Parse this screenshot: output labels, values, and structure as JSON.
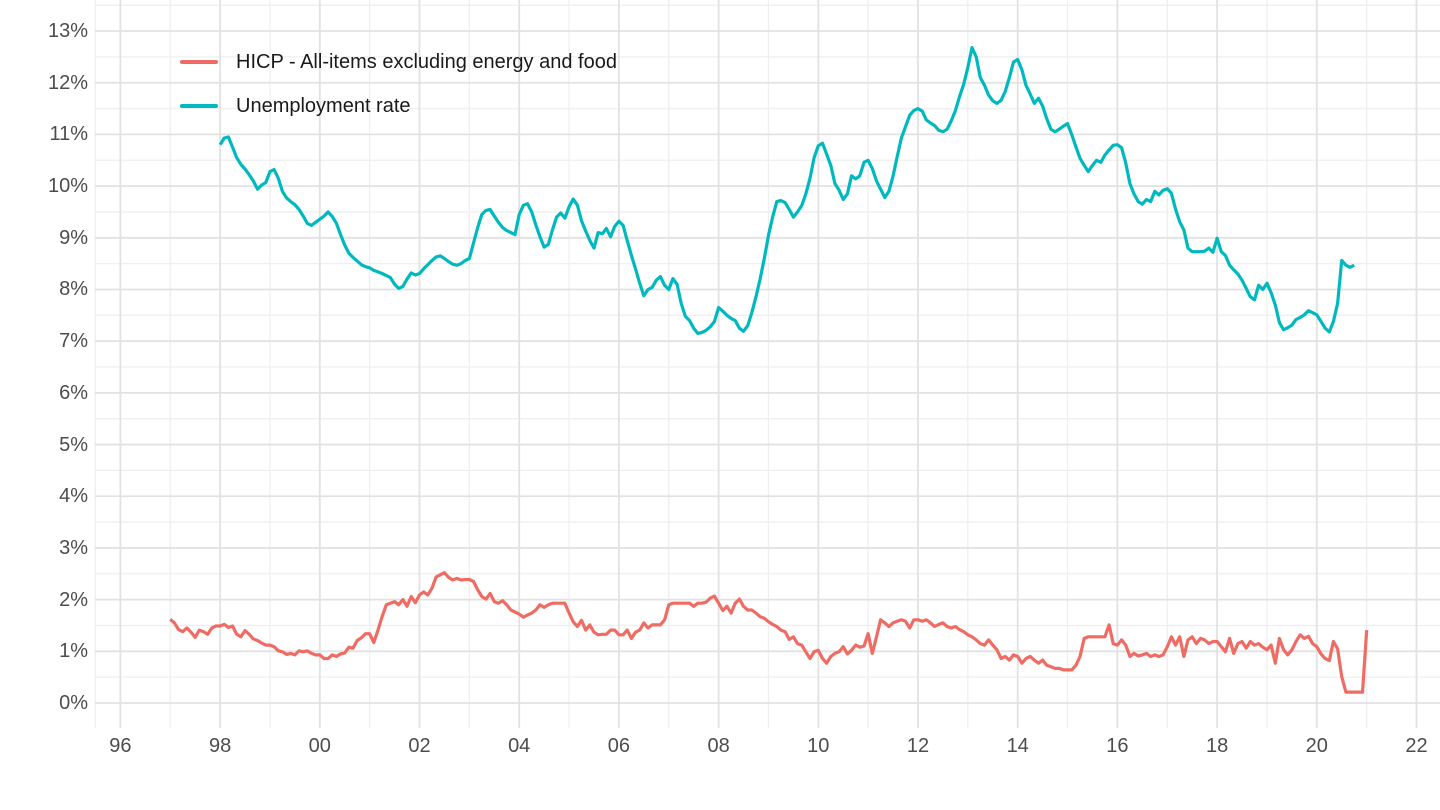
{
  "chart_data": {
    "type": "line",
    "title": "",
    "background": "#ffffff",
    "grid": {
      "major_color": "#e2e2e2",
      "minor_color": "#efefef",
      "grid_on": true
    },
    "axis_text_color": "#4d4d4d",
    "legend": {
      "position": "top-left"
    },
    "x_axis": {
      "label": "",
      "tick_labels": [
        "96",
        "98",
        "00",
        "02",
        "04",
        "06",
        "08",
        "10",
        "12",
        "14",
        "16",
        "18",
        "20",
        "22"
      ],
      "tick_years": [
        1996,
        1998,
        2000,
        2002,
        2004,
        2006,
        2008,
        2010,
        2012,
        2014,
        2016,
        2018,
        2020,
        2022
      ],
      "minor_tick_years": [
        1997,
        1999,
        2001,
        2003,
        2005,
        2007,
        2009,
        2011,
        2013,
        2015,
        2017,
        2019,
        2021
      ],
      "range": [
        1995.5,
        2022.5
      ]
    },
    "y_axis": {
      "label": "",
      "tick_labels": [
        "0%",
        "1%",
        "2%",
        "3%",
        "4%",
        "5%",
        "6%",
        "7%",
        "8%",
        "9%",
        "10%",
        "11%",
        "12%",
        "13%"
      ],
      "tick_values": [
        0,
        1,
        2,
        3,
        4,
        5,
        6,
        7,
        8,
        9,
        10,
        11,
        12,
        13
      ],
      "range": [
        -0.5,
        13.6
      ]
    },
    "series": [
      {
        "name": "HICP - All-items excluding energy and food",
        "color": "#ee6c63",
        "frequency": "monthly",
        "start_year": 1997,
        "start_month": 1,
        "values": [
          1.62,
          1.55,
          1.42,
          1.38,
          1.45,
          1.37,
          1.27,
          1.41,
          1.38,
          1.33,
          1.45,
          1.49,
          1.49,
          1.52,
          1.46,
          1.49,
          1.33,
          1.28,
          1.4,
          1.33,
          1.24,
          1.21,
          1.16,
          1.12,
          1.12,
          1.09,
          1.01,
          0.99,
          0.94,
          0.96,
          0.93,
          1.01,
          0.99,
          1.01,
          0.96,
          0.93,
          0.93,
          0.86,
          0.86,
          0.93,
          0.9,
          0.95,
          0.97,
          1.08,
          1.06,
          1.21,
          1.26,
          1.34,
          1.34,
          1.17,
          1.41,
          1.67,
          1.9,
          1.93,
          1.96,
          1.9,
          2.0,
          1.87,
          2.06,
          1.94,
          2.09,
          2.15,
          2.09,
          2.22,
          2.44,
          2.48,
          2.52,
          2.43,
          2.38,
          2.41,
          2.38,
          2.39,
          2.39,
          2.35,
          2.19,
          2.06,
          2.01,
          2.12,
          1.96,
          1.93,
          1.98,
          1.9,
          1.8,
          1.76,
          1.72,
          1.66,
          1.7,
          1.74,
          1.8,
          1.9,
          1.85,
          1.9,
          1.93,
          1.93,
          1.93,
          1.93,
          1.74,
          1.57,
          1.48,
          1.6,
          1.41,
          1.51,
          1.37,
          1.32,
          1.33,
          1.33,
          1.41,
          1.41,
          1.32,
          1.32,
          1.41,
          1.25,
          1.37,
          1.41,
          1.55,
          1.45,
          1.51,
          1.51,
          1.51,
          1.61,
          1.9,
          1.93,
          1.93,
          1.93,
          1.93,
          1.93,
          1.87,
          1.93,
          1.93,
          1.95,
          2.03,
          2.07,
          1.93,
          1.79,
          1.87,
          1.74,
          1.93,
          2.01,
          1.87,
          1.8,
          1.8,
          1.74,
          1.67,
          1.64,
          1.57,
          1.52,
          1.48,
          1.41,
          1.38,
          1.23,
          1.28,
          1.15,
          1.12,
          0.99,
          0.86,
          0.99,
          1.02,
          0.86,
          0.77,
          0.9,
          0.96,
          0.99,
          1.09,
          0.95,
          1.02,
          1.12,
          1.08,
          1.1,
          1.34,
          0.96,
          1.28,
          1.61,
          1.55,
          1.48,
          1.55,
          1.58,
          1.61,
          1.58,
          1.45,
          1.61,
          1.61,
          1.58,
          1.61,
          1.55,
          1.48,
          1.52,
          1.55,
          1.48,
          1.45,
          1.48,
          1.42,
          1.38,
          1.32,
          1.28,
          1.22,
          1.15,
          1.12,
          1.22,
          1.12,
          1.03,
          0.86,
          0.9,
          0.83,
          0.93,
          0.9,
          0.77,
          0.86,
          0.9,
          0.83,
          0.77,
          0.83,
          0.73,
          0.7,
          0.67,
          0.67,
          0.64,
          0.64,
          0.64,
          0.73,
          0.9,
          1.25,
          1.28,
          1.28,
          1.28,
          1.28,
          1.28,
          1.51,
          1.15,
          1.12,
          1.22,
          1.12,
          0.9,
          0.96,
          0.91,
          0.93,
          0.96,
          0.9,
          0.93,
          0.9,
          0.93,
          1.09,
          1.28,
          1.12,
          1.28,
          0.9,
          1.22,
          1.28,
          1.15,
          1.25,
          1.22,
          1.15,
          1.19,
          1.19,
          1.09,
          0.99,
          1.25,
          0.96,
          1.15,
          1.19,
          1.06,
          1.19,
          1.12,
          1.15,
          1.08,
          1.03,
          1.12,
          0.77,
          1.25,
          1.03,
          0.93,
          1.03,
          1.19,
          1.32,
          1.25,
          1.29,
          1.15,
          1.09,
          0.95,
          0.86,
          0.82,
          1.19,
          1.05,
          0.51,
          0.21,
          0.21,
          0.21,
          0.21,
          0.21,
          1.41
        ]
      },
      {
        "name": "Unemployment rate",
        "color": "#00b9bf",
        "frequency": "monthly",
        "start_year": 1998,
        "start_month": 1,
        "values": [
          10.8,
          10.93,
          10.95,
          10.75,
          10.55,
          10.42,
          10.33,
          10.22,
          10.1,
          9.94,
          10.02,
          10.07,
          10.28,
          10.32,
          10.15,
          9.9,
          9.77,
          9.7,
          9.64,
          9.55,
          9.42,
          9.28,
          9.24,
          9.3,
          9.36,
          9.42,
          9.5,
          9.41,
          9.28,
          9.06,
          8.86,
          8.7,
          8.62,
          8.55,
          8.48,
          8.44,
          8.42,
          8.37,
          8.34,
          8.31,
          8.27,
          8.23,
          8.1,
          8.02,
          8.06,
          8.2,
          8.32,
          8.28,
          8.31,
          8.4,
          8.48,
          8.56,
          8.63,
          8.65,
          8.6,
          8.54,
          8.49,
          8.47,
          8.5,
          8.56,
          8.6,
          8.9,
          9.2,
          9.45,
          9.53,
          9.55,
          9.42,
          9.3,
          9.2,
          9.14,
          9.1,
          9.06,
          9.45,
          9.63,
          9.66,
          9.5,
          9.25,
          9.02,
          8.82,
          8.87,
          9.15,
          9.4,
          9.48,
          9.38,
          9.6,
          9.75,
          9.63,
          9.33,
          9.13,
          8.95,
          8.8,
          9.1,
          9.08,
          9.18,
          9.02,
          9.22,
          9.32,
          9.24,
          8.95,
          8.66,
          8.4,
          8.12,
          7.88,
          8.0,
          8.04,
          8.18,
          8.25,
          8.08,
          8.0,
          8.21,
          8.1,
          7.73,
          7.48,
          7.4,
          7.25,
          7.15,
          7.17,
          7.21,
          7.28,
          7.38,
          7.65,
          7.58,
          7.5,
          7.44,
          7.4,
          7.25,
          7.19,
          7.3,
          7.55,
          7.86,
          8.2,
          8.6,
          9.05,
          9.4,
          9.7,
          9.72,
          9.68,
          9.55,
          9.4,
          9.5,
          9.62,
          9.85,
          10.15,
          10.55,
          10.78,
          10.83,
          10.62,
          10.4,
          10.05,
          9.92,
          9.74,
          9.85,
          10.2,
          10.14,
          10.2,
          10.46,
          10.5,
          10.34,
          10.1,
          9.94,
          9.78,
          9.9,
          10.2,
          10.57,
          10.93,
          11.15,
          11.37,
          11.46,
          11.5,
          11.45,
          11.28,
          11.22,
          11.17,
          11.08,
          11.05,
          11.1,
          11.26,
          11.46,
          11.73,
          11.97,
          12.3,
          12.68,
          12.5,
          12.1,
          11.95,
          11.76,
          11.65,
          11.6,
          11.66,
          11.83,
          12.1,
          12.4,
          12.45,
          12.25,
          11.95,
          11.78,
          11.6,
          11.7,
          11.55,
          11.3,
          11.1,
          11.05,
          11.1,
          11.16,
          11.21,
          11.0,
          10.76,
          10.54,
          10.4,
          10.28,
          10.4,
          10.5,
          10.46,
          10.6,
          10.7,
          10.79,
          10.8,
          10.74,
          10.45,
          10.05,
          9.85,
          9.7,
          9.65,
          9.74,
          9.7,
          9.9,
          9.83,
          9.92,
          9.95,
          9.86,
          9.55,
          9.31,
          9.15,
          8.8,
          8.73,
          8.73,
          8.73,
          8.74,
          8.8,
          8.72,
          8.99,
          8.73,
          8.66,
          8.47,
          8.38,
          8.3,
          8.18,
          8.02,
          7.86,
          7.8,
          8.08,
          8.0,
          8.12,
          7.94,
          7.7,
          7.36,
          7.22,
          7.26,
          7.31,
          7.42,
          7.46,
          7.51,
          7.59,
          7.55,
          7.51,
          7.38,
          7.25,
          7.18,
          7.38,
          7.73,
          8.56,
          8.47,
          8.43,
          8.47
        ]
      }
    ]
  }
}
